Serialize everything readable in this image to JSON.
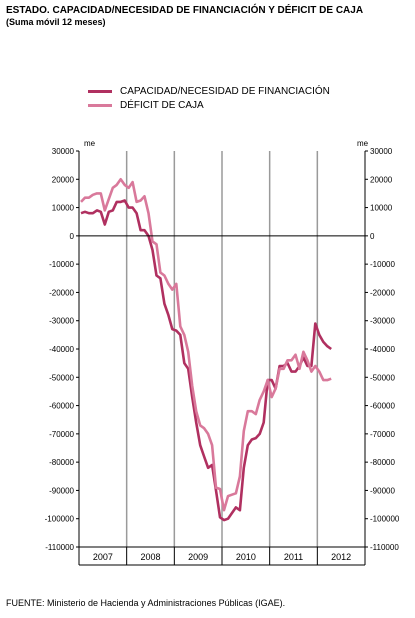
{
  "page": {
    "title": "ESTADO. CAPACIDAD/NECESIDAD DE FINANCIACIÓN Y DÉFICIT DE CAJA",
    "subtitle": "(Suma móvil 12 meses)",
    "source": "FUENTE: Ministerio de Hacienda y Administraciones Públicas (IGAE)."
  },
  "chart_data": {
    "type": "line",
    "unit_label": "me",
    "ylim": [
      -110000,
      30000
    ],
    "yticks": [
      30000,
      20000,
      10000,
      0,
      -10000,
      -20000,
      -30000,
      -40000,
      -50000,
      -60000,
      -70000,
      -80000,
      -90000,
      -100000,
      -110000
    ],
    "ytick_labels": [
      "30000",
      "20000",
      "10000",
      "0",
      "-10000",
      "-20000",
      "-30000",
      "-40000",
      "-50000",
      "-60000",
      "-70000",
      "-80000",
      "-90000",
      "-100000",
      "-110000"
    ],
    "years": [
      "2007",
      "2008",
      "2009",
      "2010",
      "2011",
      "2012"
    ],
    "x_start": "2007-01",
    "colors": {
      "capacidad": "#b03060",
      "deficit": "#d9799b",
      "zero_line": "#000000",
      "year_grid": "#9a9a9a"
    },
    "legend_position": "top-left",
    "series": [
      {
        "name": "CAPACIDAD/NECESIDAD DE FINANCIACIÓN",
        "color": "#b03060",
        "values": [
          8000,
          8500,
          8000,
          8000,
          9000,
          8500,
          4000,
          8500,
          9000,
          12000,
          12000,
          12500,
          10000,
          10000,
          8000,
          2000,
          2000,
          0,
          -5000,
          -14000,
          -15000,
          -24000,
          -28000,
          -33000,
          -33500,
          -35000,
          -45000,
          -47000,
          -57000,
          -66000,
          -74000,
          -78000,
          -82000,
          -81000,
          -90000,
          -99500,
          -100500,
          -100000,
          -98000,
          -96000,
          -97000,
          -82000,
          -74000,
          -72000,
          -71500,
          -70000,
          -66000,
          -51000,
          -51000,
          -54000,
          -46000,
          -46000,
          -45000,
          -48000,
          -48000,
          -46000,
          -43000,
          -46000,
          -46000,
          -31000,
          -35000,
          -37500,
          -39000,
          -40000
        ]
      },
      {
        "name": "DÉFICIT DE CAJA",
        "color": "#d9799b",
        "values": [
          12000,
          13500,
          13500,
          14500,
          15000,
          15000,
          9000,
          13000,
          17000,
          18000,
          20000,
          18000,
          17000,
          19000,
          12000,
          12500,
          14000,
          8000,
          -2000,
          -3000,
          -13000,
          -14000,
          -17000,
          -19000,
          -17000,
          -32000,
          -35000,
          -41000,
          -53000,
          -62000,
          -67000,
          -68000,
          -70000,
          -74000,
          -89000,
          -89500,
          -97000,
          -92000,
          -91500,
          -91000,
          -85000,
          -69000,
          -62000,
          -62000,
          -63000,
          -58000,
          -55000,
          -51000,
          -57000,
          -54000,
          -47000,
          -47000,
          -44000,
          -44000,
          -42000,
          -47000,
          -41000,
          -44000,
          -48000,
          -46000,
          -48000,
          -51000,
          -51000,
          -50500
        ]
      }
    ]
  }
}
